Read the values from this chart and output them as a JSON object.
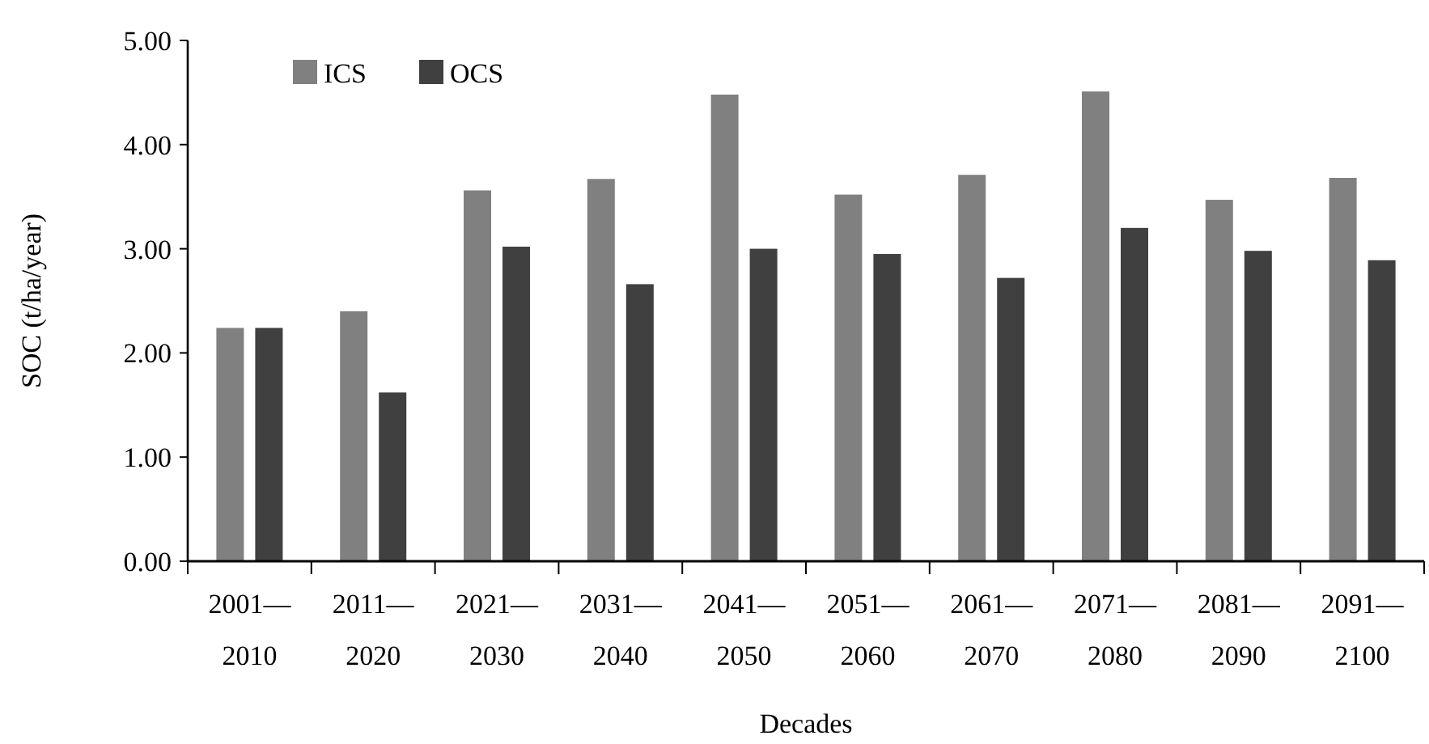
{
  "chart_data": {
    "type": "bar",
    "xlabel": "Decades",
    "ylabel": "SOC (t/ha/year)",
    "categories": [
      "2001—2010",
      "2011—2020",
      "2021—2030",
      "2031—2040",
      "2041—2050",
      "2051—2060",
      "2061—2070",
      "2071—2080",
      "2081—2090",
      "2091—2100"
    ],
    "series": [
      {
        "name": "ICS",
        "color": "#808080",
        "values": [
          2.24,
          2.4,
          3.56,
          3.67,
          4.48,
          3.52,
          3.71,
          4.51,
          3.47,
          3.68
        ]
      },
      {
        "name": "OCS",
        "color": "#404040",
        "values": [
          2.24,
          1.62,
          3.02,
          2.66,
          3.0,
          2.95,
          2.72,
          3.2,
          2.98,
          2.89
        ]
      }
    ],
    "ylim": [
      0,
      5
    ],
    "yticks": [
      {
        "value": 0,
        "label": "0.00"
      },
      {
        "value": 1,
        "label": "1.00"
      },
      {
        "value": 2,
        "label": "2.00"
      },
      {
        "value": 3,
        "label": "3.00"
      },
      {
        "value": 4,
        "label": "4.00"
      },
      {
        "value": 5,
        "label": "5.00"
      }
    ],
    "legend": "top left",
    "grid": false
  }
}
